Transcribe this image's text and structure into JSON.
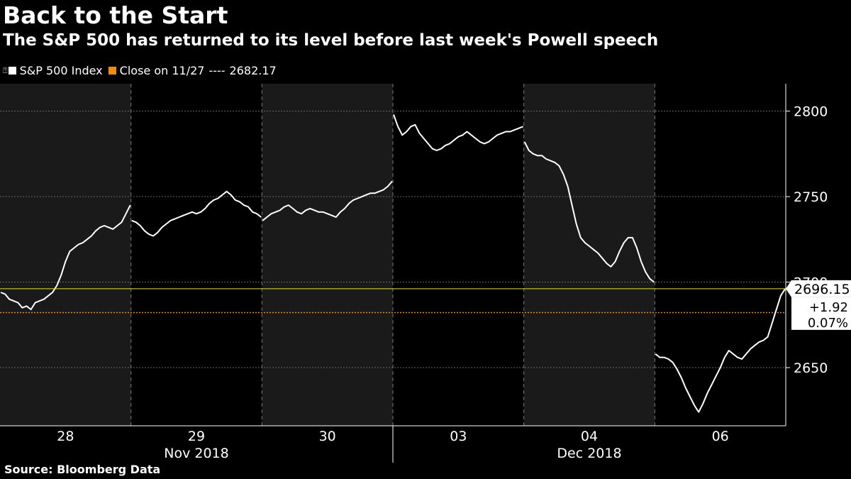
{
  "header": {
    "title": "Back to the Start",
    "subtitle": "The S&P 500 has returned to its level before last week's Powell speech"
  },
  "legend": {
    "series_label": "S&P 500 Index",
    "reference_label": "Close on 11/27",
    "reference_dash": "----",
    "reference_value": "2682.17"
  },
  "footer": {
    "source": "Source: Bloomberg Data"
  },
  "colors": {
    "background": "#000000",
    "shade": "#1a1a1a",
    "line": "#ffffff",
    "reference": "#f28c00",
    "last": "#f5e000",
    "grid": "#666666"
  },
  "chart_data": {
    "type": "line",
    "title": "Back to the Start",
    "ylabel": "",
    "ylim": [
      2616,
      2816
    ],
    "yticks": [
      2650,
      2700,
      2750,
      2800
    ],
    "day_labels": [
      "28",
      "29",
      "30",
      "03",
      "04",
      "06"
    ],
    "month_labels": [
      "Nov 2018",
      "Dec 2018"
    ],
    "reference_line": {
      "label": "Close on 11/27",
      "value": 2682.17
    },
    "last_value": {
      "value": "2696.15",
      "change": "+1.92",
      "change_pct": "0.07%"
    },
    "series": [
      {
        "name": "S&P 500 Index",
        "days": [
          {
            "day": "28",
            "values": [
              2694,
              2693,
              2690,
              2689,
              2688,
              2685,
              2686,
              2684,
              2688,
              2689,
              2690,
              2692,
              2694,
              2698,
              2704,
              2712,
              2718,
              2720,
              2722,
              2723,
              2725,
              2727,
              2730,
              2732,
              2733,
              2732,
              2731,
              2733,
              2735,
              2740,
              2745
            ]
          },
          {
            "day": "29",
            "values": [
              2736,
              2735,
              2733,
              2730,
              2728,
              2727,
              2729,
              2732,
              2734,
              2736,
              2737,
              2738,
              2739,
              2740,
              2741,
              2740,
              2741,
              2743,
              2746,
              2748,
              2749,
              2751,
              2753,
              2751,
              2748,
              2747,
              2745,
              2744,
              2741,
              2740,
              2738
            ]
          },
          {
            "day": "30",
            "values": [
              2736,
              2738,
              2740,
              2741,
              2742,
              2744,
              2745,
              2743,
              2741,
              2740,
              2742,
              2743,
              2742,
              2741,
              2741,
              2740,
              2739,
              2738,
              2741,
              2743,
              2746,
              2748,
              2749,
              2750,
              2751,
              2752,
              2752,
              2753,
              2754,
              2756,
              2759
            ]
          },
          {
            "day": "03",
            "values": [
              2798,
              2791,
              2786,
              2788,
              2791,
              2792,
              2787,
              2784,
              2781,
              2778,
              2777,
              2778,
              2780,
              2781,
              2783,
              2785,
              2786,
              2788,
              2786,
              2784,
              2782,
              2781,
              2782,
              2784,
              2786,
              2787,
              2788,
              2788,
              2789,
              2790,
              2791
            ]
          },
          {
            "day": "04",
            "values": [
              2782,
              2777,
              2775,
              2774,
              2774,
              2772,
              2771,
              2770,
              2768,
              2763,
              2756,
              2745,
              2734,
              2726,
              2723,
              2721,
              2719,
              2717,
              2714,
              2711,
              2709,
              2712,
              2718,
              2723,
              2726,
              2726,
              2720,
              2712,
              2706,
              2702,
              2700
            ]
          },
          {
            "day": "06",
            "values": [
              2658,
              2656,
              2656,
              2655,
              2653,
              2649,
              2644,
              2638,
              2633,
              2628,
              2624,
              2629,
              2635,
              2640,
              2645,
              2650,
              2656,
              2660,
              2658,
              2656,
              2655,
              2658,
              2661,
              2663,
              2665,
              2666,
              2668,
              2676,
              2684,
              2692,
              2696
            ]
          }
        ]
      }
    ]
  }
}
